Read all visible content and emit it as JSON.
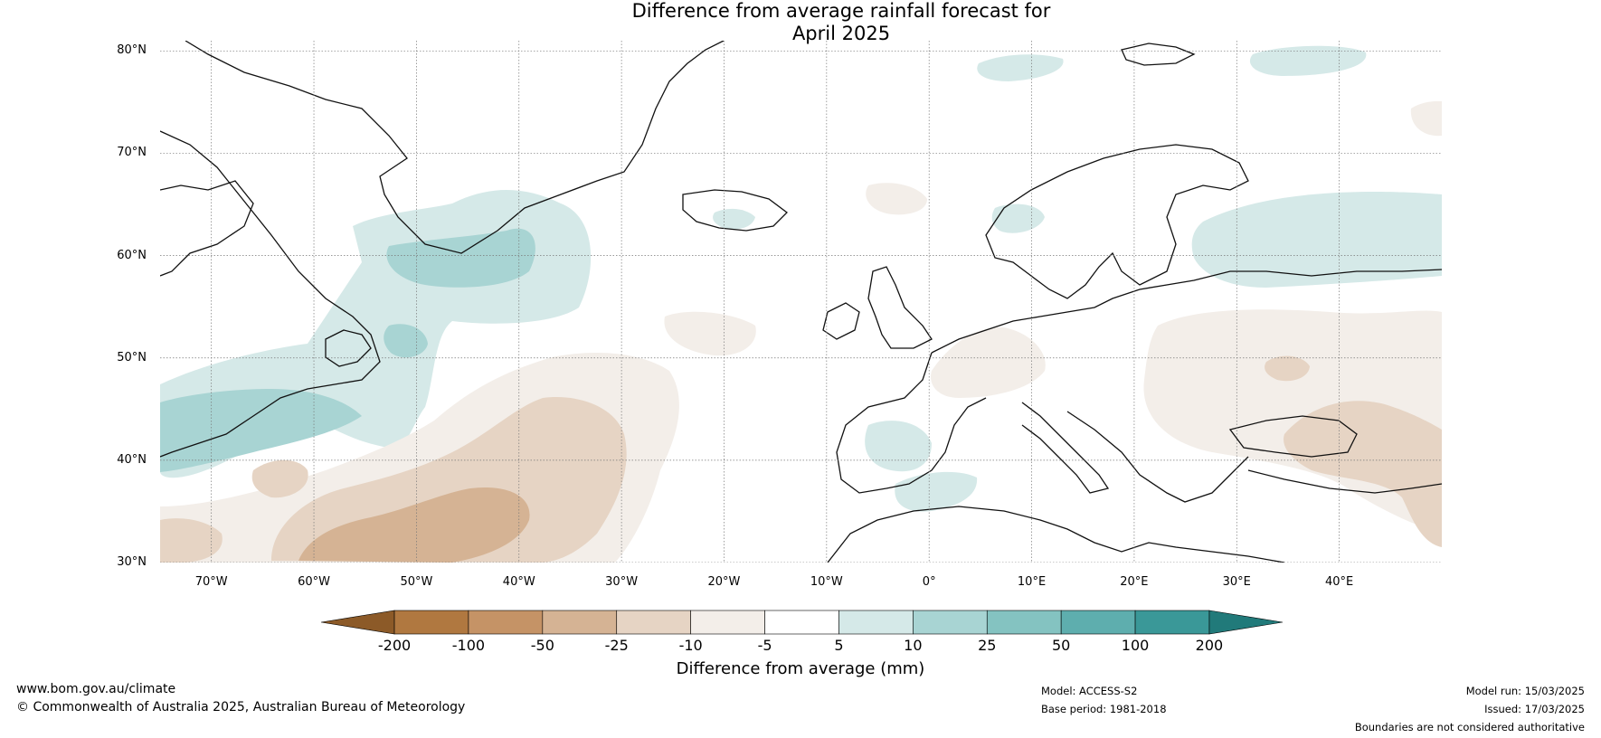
{
  "title_lines": [
    "Difference from average rainfall forecast for",
    "April 2025"
  ],
  "map": {
    "region": "North Atlantic and Europe",
    "lon_range": [
      -75,
      50
    ],
    "lat_range": [
      30,
      81
    ],
    "projection": "plate-carree",
    "gridlines": true,
    "lat_ticks": [
      {
        "value": 80,
        "label": "80°N"
      },
      {
        "value": 70,
        "label": "70°N"
      },
      {
        "value": 60,
        "label": "60°N"
      },
      {
        "value": 50,
        "label": "50°N"
      },
      {
        "value": 40,
        "label": "40°N"
      },
      {
        "value": 30,
        "label": "30°N"
      }
    ],
    "lon_ticks": [
      {
        "value": -70,
        "label": "70°W"
      },
      {
        "value": -60,
        "label": "60°W"
      },
      {
        "value": -50,
        "label": "50°W"
      },
      {
        "value": -40,
        "label": "40°W"
      },
      {
        "value": -30,
        "label": "30°W"
      },
      {
        "value": -20,
        "label": "20°W"
      },
      {
        "value": -10,
        "label": "10°W"
      },
      {
        "value": 0,
        "label": "0°"
      },
      {
        "value": 10,
        "label": "10°E"
      },
      {
        "value": 20,
        "label": "20°E"
      },
      {
        "value": 30,
        "label": "30°E"
      },
      {
        "value": 40,
        "label": "40°E"
      }
    ],
    "anomaly_regions": [
      {
        "name": "labrador-sea-wet",
        "category": "5 to 10",
        "color": "#d5e9e8"
      },
      {
        "name": "nova-scotia-wet",
        "category": "10 to 25",
        "color": "#a8d4d3"
      },
      {
        "name": "central-atlantic-dry",
        "category": "-10 to -5",
        "color": "#f3eee9"
      },
      {
        "name": "subtropical-atlantic-dry",
        "category": "-25 to -10",
        "color": "#e6d4c4"
      },
      {
        "name": "subtropical-atlantic-very-dry",
        "category": "-50 to -25",
        "color": "#d5b394"
      },
      {
        "name": "northwest-russia-wet",
        "category": "5 to 10",
        "color": "#d5e9e8"
      },
      {
        "name": "eastern-europe-dry",
        "category": "-10 to -5",
        "color": "#f3eee9"
      },
      {
        "name": "black-sea-dry",
        "category": "-25 to -10",
        "color": "#e6d4c4"
      },
      {
        "name": "iberia-wet",
        "category": "5 to 10",
        "color": "#d5e9e8"
      }
    ]
  },
  "colorbar": {
    "label": "Difference from average (mm)",
    "ticks": [
      "-200",
      "-100",
      "-50",
      "-25",
      "-10",
      "-5",
      "5",
      "10",
      "25",
      "50",
      "100",
      "200"
    ],
    "colors": [
      "#8c5a28",
      "#b07840",
      "#c59366",
      "#d5b394",
      "#e6d4c4",
      "#f3eee9",
      "#ffffff",
      "#d5e9e8",
      "#a8d4d3",
      "#84c3c1",
      "#5eaeae",
      "#3a9898",
      "#217a7a"
    ]
  },
  "footer": {
    "website": "www.bom.gov.au/climate",
    "copyright": "© Commonwealth of Australia 2025, Australian Bureau of Meteorology",
    "model": "Model: ACCESS-S2",
    "base_period": "Base period: 1981-2018",
    "model_run": "Model run: 15/03/2025",
    "issued": "Issued: 17/03/2025",
    "boundaries_note": "Boundaries are not considered authoritative"
  }
}
